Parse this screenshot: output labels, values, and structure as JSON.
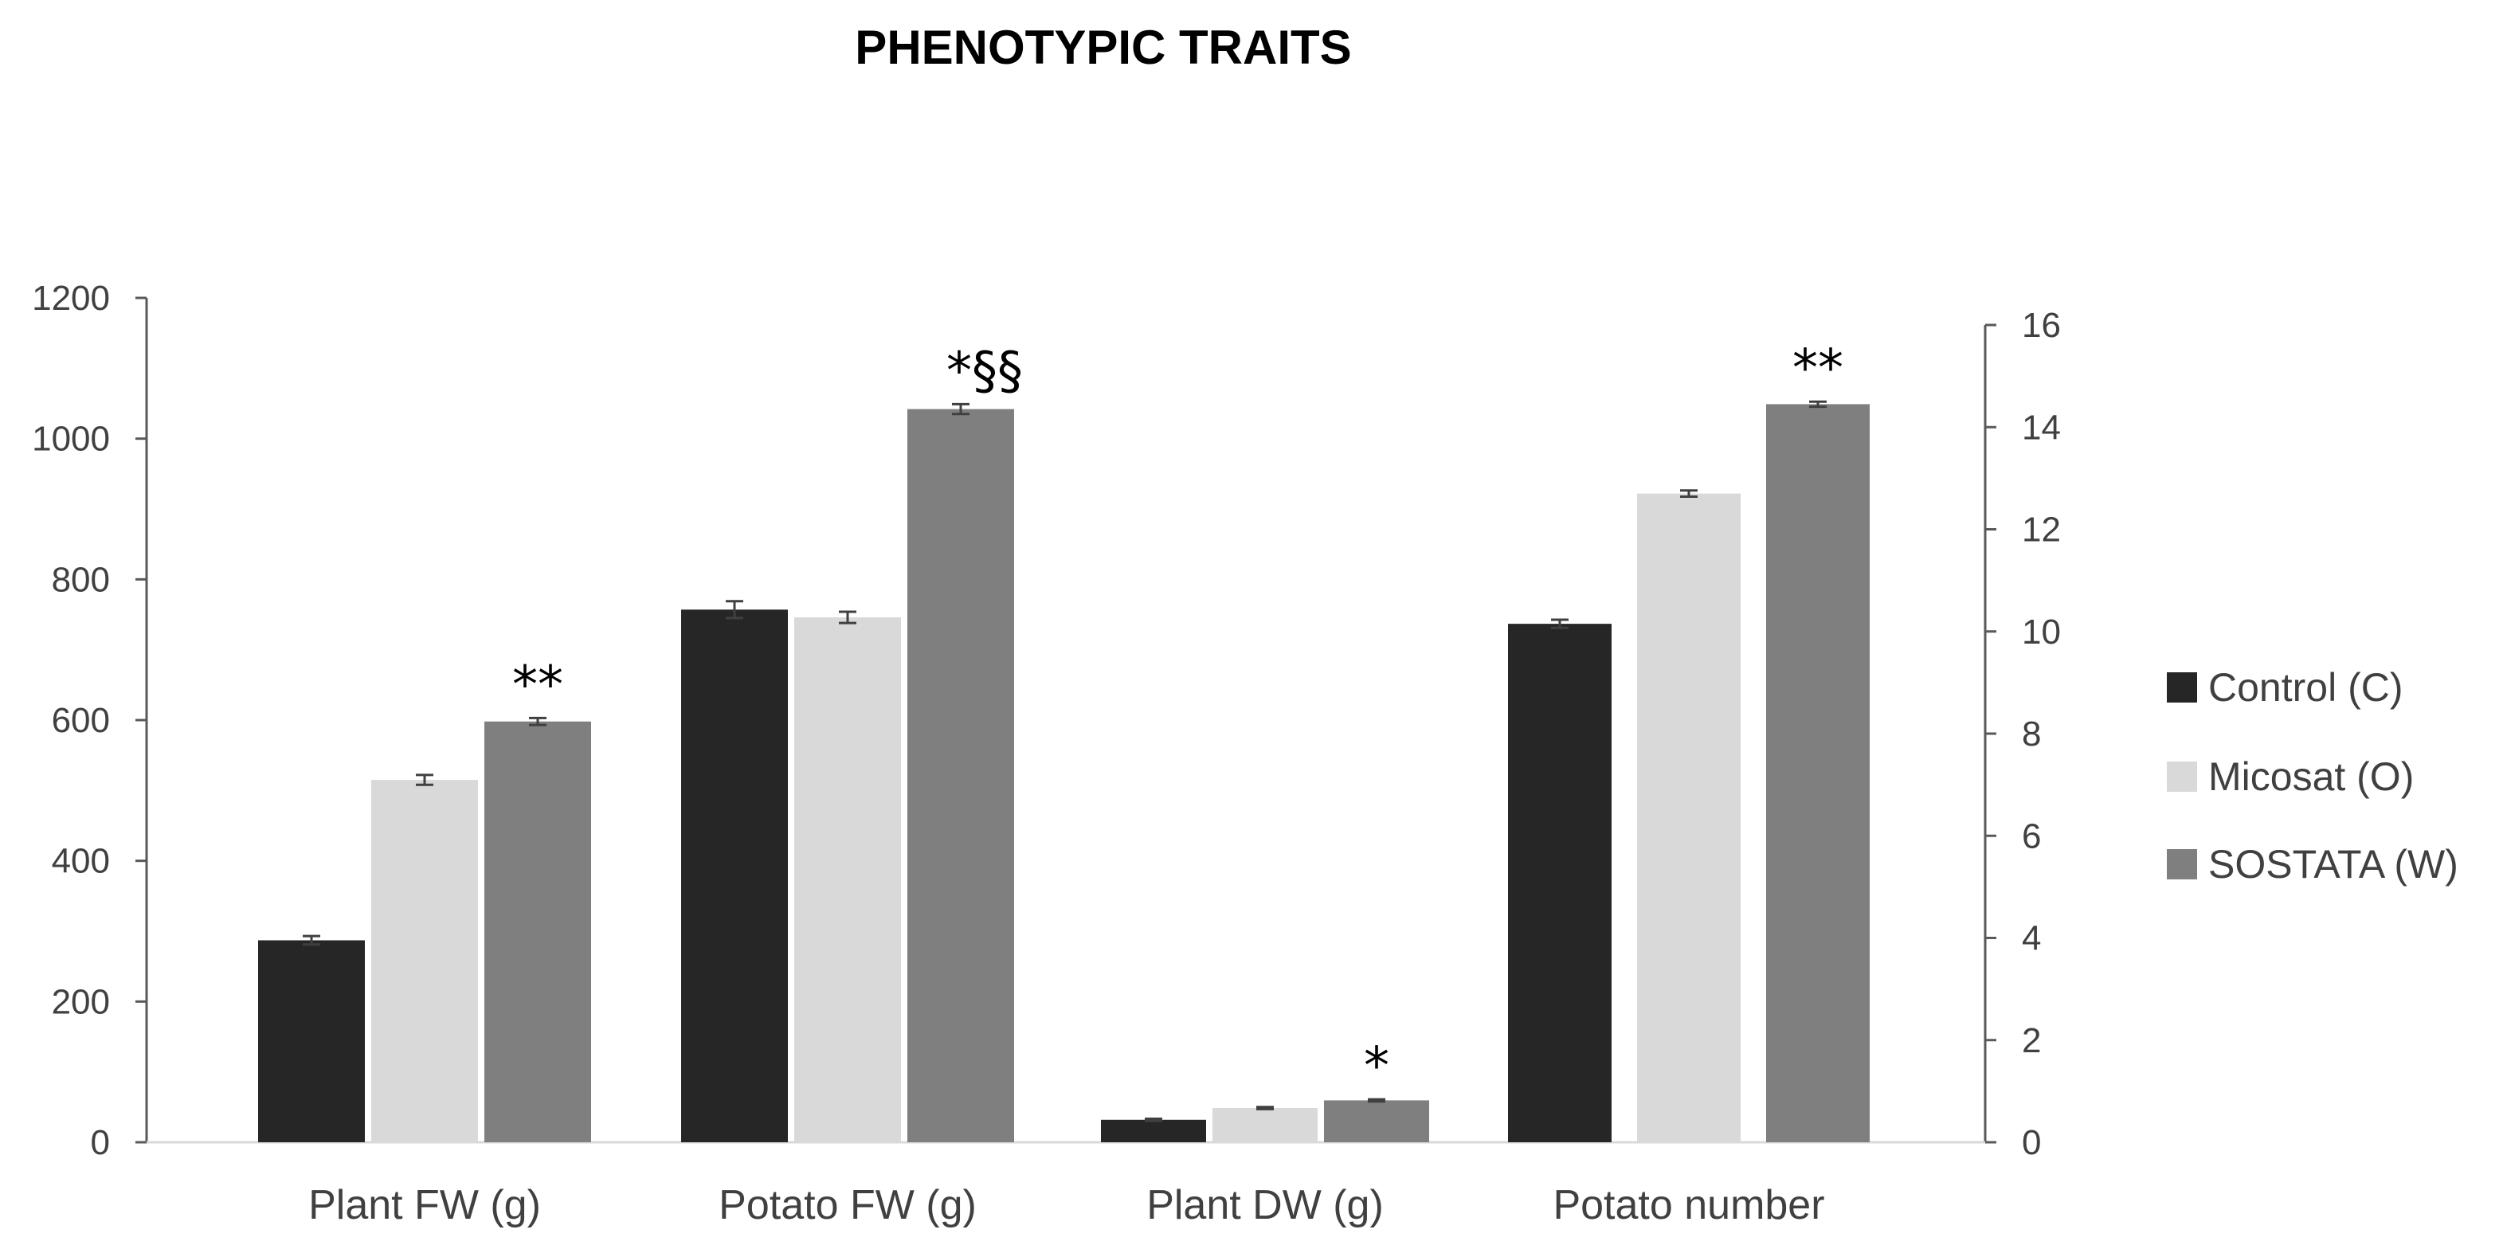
{
  "chart_data": {
    "type": "bar",
    "title": "PHENOTYPIC TRAITS",
    "categories": [
      "Plant FW (g)",
      "Potato FW (g)",
      "Plant DW (g)",
      "Potato number"
    ],
    "category_axis": [
      "primary",
      "primary",
      "secondary",
      "secondary"
    ],
    "series": [
      {
        "name": "Control (C)",
        "color": "#262626",
        "values": [
          287,
          757,
          0.44,
          10.15
        ],
        "errors": [
          6,
          12,
          0.02,
          0.08
        ]
      },
      {
        "name": "Micosat (O)",
        "color": "#d9d9d9",
        "values": [
          515,
          746,
          0.67,
          12.7
        ],
        "errors": [
          7,
          8,
          0.02,
          0.06
        ]
      },
      {
        "name": "SOSTATA (W)",
        "color": "#7f7f7f",
        "values": [
          598,
          1042,
          0.82,
          14.45
        ],
        "errors": [
          5,
          7,
          0.02,
          0.05
        ]
      }
    ],
    "annotations": [
      {
        "category": "Plant FW (g)",
        "series": "SOSTATA (W)",
        "text": "**"
      },
      {
        "category": "Potato FW (g)",
        "series": "SOSTATA (W)",
        "text": "*§§"
      },
      {
        "category": "Plant DW (g)",
        "series": "SOSTATA (W)",
        "text": "*"
      },
      {
        "category": "Potato number",
        "series": "SOSTATA (W)",
        "text": "**"
      }
    ],
    "y_primary": {
      "ylim": [
        0,
        1200
      ],
      "ticks": [
        "0",
        "200",
        "400",
        "600",
        "800",
        "1000",
        "1200"
      ]
    },
    "y_secondary": {
      "ylim": [
        0,
        16
      ],
      "ticks": [
        "0",
        "2",
        "4",
        "6",
        "8",
        "10",
        "12",
        "14",
        "16"
      ]
    },
    "legend": {
      "position": "right",
      "entries": [
        "Control (C)",
        "Micosat (O)",
        "SOSTATA (W)"
      ]
    },
    "grid": false
  }
}
